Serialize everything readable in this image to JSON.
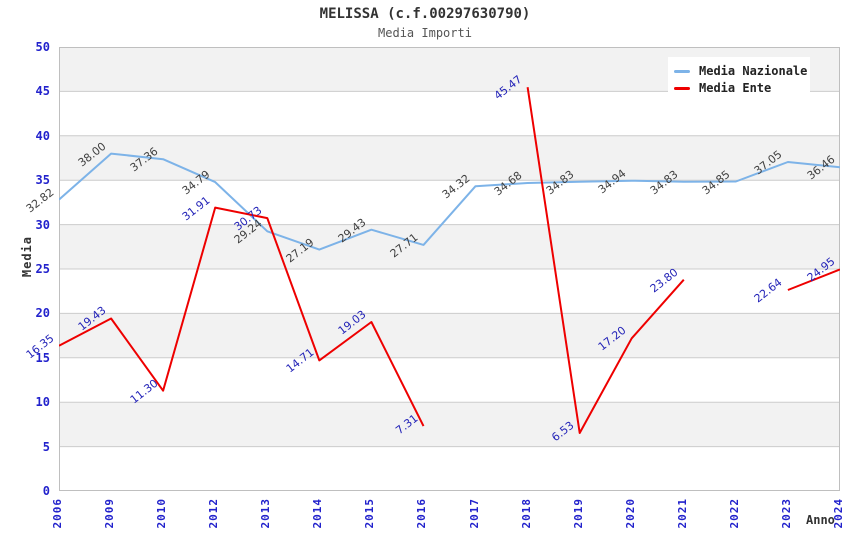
{
  "title": "MELISSA (c.f.00297630790)",
  "subtitle": "Media Importi",
  "axes": {
    "y_label": "Media",
    "x_label": "Anno",
    "y_ticks": [
      0,
      5,
      10,
      15,
      20,
      25,
      30,
      35,
      40,
      45,
      50
    ],
    "tick_color": "#2222cc"
  },
  "legend": {
    "position": "top-right-inside",
    "items": [
      {
        "label": "Media Nazionale",
        "color": "#7db3e8"
      },
      {
        "label": "Media Ente",
        "color": "#ee0000"
      }
    ]
  },
  "chart_data": {
    "type": "line",
    "title": "MELISSA (c.f.00297630790)",
    "subtitle": "Media Importi",
    "xlabel": "Anno",
    "ylabel": "Media",
    "ylim": [
      0,
      50
    ],
    "ytick_step": 5,
    "grid": "horizontal gridlines with alternating gray bands",
    "band_color": "#f2f2f2",
    "gridline_color": "#cccccc",
    "categories": [
      "2006",
      "2009",
      "2010",
      "2012",
      "2013",
      "2014",
      "2015",
      "2016",
      "2017",
      "2018",
      "2019",
      "2020",
      "2021",
      "2022",
      "2023",
      "2024"
    ],
    "series": [
      {
        "name": "Media Nazionale",
        "color": "#7db3e8",
        "label_color": "#404040",
        "values": [
          32.82,
          38.0,
          37.36,
          34.79,
          29.24,
          27.19,
          29.43,
          27.71,
          34.32,
          34.68,
          34.83,
          34.94,
          34.83,
          34.85,
          37.05,
          36.46
        ]
      },
      {
        "name": "Media Ente",
        "color": "#ee0000",
        "label_color": "#2424b8",
        "values": [
          16.35,
          19.43,
          11.3,
          31.91,
          30.73,
          14.71,
          19.03,
          7.31,
          null,
          45.47,
          6.53,
          17.2,
          23.8,
          null,
          22.64,
          24.95
        ]
      }
    ]
  }
}
